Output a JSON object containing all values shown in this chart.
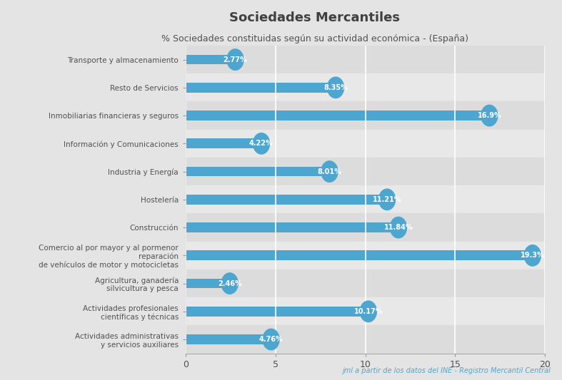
{
  "title": "Sociedades Mercantiles",
  "subtitle": "% Sociedades constituidas según su actividad económica - (España)",
  "footnote": "jml a partir de los datos del INE - Registro Mercantil Central",
  "categories": [
    "Transporte y almacenamiento",
    "Resto de Servicios",
    "Inmobiliarias financieras y seguros",
    "Información y Comunicaciones",
    "Industria y Energía",
    "Hostelería",
    "Construcción",
    "Comercio al por mayor y al pormenor\nreparación\nde vehículos de motor y motocicletas",
    "Agricultura, ganadería\nsilvicultura y pesca",
    "Actividades profesionales\ncientíficas y técnicas",
    "Actividades administrativas\ny servicios auxiliares"
  ],
  "values": [
    2.77,
    8.35,
    16.9,
    4.22,
    8.01,
    11.21,
    11.84,
    19.3,
    2.46,
    10.17,
    4.76
  ],
  "labels": [
    "2.77%",
    "8.35%",
    "16.9%",
    "4.22%",
    "8.01%",
    "11.21%",
    "11.84%",
    "19.3%",
    "2.46%",
    "10.17%",
    "4.76%"
  ],
  "bar_color": "#4DA6D0",
  "background_color": "#E4E4E4",
  "row_color_even": "#DCDCDC",
  "row_color_odd": "#E8E8E8",
  "title_color": "#404040",
  "subtitle_color": "#505050",
  "label_color": "#ffffff",
  "tick_label_color": "#505050",
  "footnote_color": "#4DA6D0",
  "xlim": [
    0,
    20
  ],
  "xticks": [
    0,
    5,
    10,
    15,
    20
  ]
}
